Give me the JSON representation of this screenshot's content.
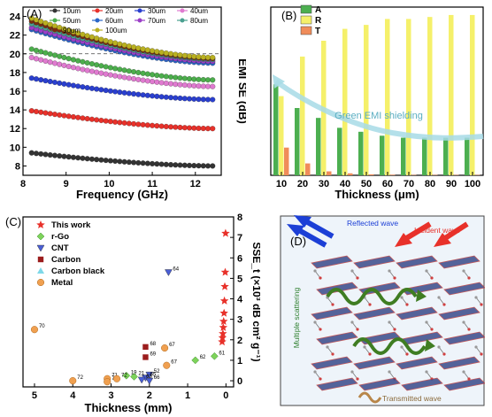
{
  "panelA": {
    "letter": "(A)",
    "chart_data": {
      "type": "line",
      "xlabel": "Frequency (GHz)",
      "ylabel": "EMI SE (dB)",
      "xlim": [
        8,
        12.6
      ],
      "ylim": [
        7,
        25
      ],
      "xticks": [
        "8",
        "9",
        "10",
        "11",
        "12"
      ],
      "yticks": [
        "8",
        "10",
        "12",
        "14",
        "16",
        "18",
        "20",
        "22",
        "24"
      ],
      "reference_line": 20,
      "x_start": 8.2,
      "x_end": 12.4,
      "series": [
        {
          "name": "10um",
          "color": "#333333",
          "y_start": 9.4,
          "y_end": 8.0
        },
        {
          "name": "20um",
          "color": "#e8312a",
          "y_start": 13.9,
          "y_end": 12.0
        },
        {
          "name": "30um",
          "color": "#2a3fcf",
          "y_start": 17.4,
          "y_end": 15.1
        },
        {
          "name": "40um",
          "color": "#e07ad0",
          "y_start": 19.6,
          "y_end": 16.5
        },
        {
          "name": "50um",
          "color": "#4cae4c",
          "y_start": 20.5,
          "y_end": 17.2
        },
        {
          "name": "60um",
          "color": "#2a66c8",
          "y_start": 22.6,
          "y_end": 19.0
        },
        {
          "name": "70um",
          "color": "#9b3fc8",
          "y_start": 22.8,
          "y_end": 19.2
        },
        {
          "name": "80um",
          "color": "#4aa090",
          "y_start": 23.2,
          "y_end": 19.4
        },
        {
          "name": "90um",
          "color": "#7a2c10",
          "y_start": 23.5,
          "y_end": 19.5
        },
        {
          "name": "100um",
          "color": "#b9b020",
          "y_start": 23.8,
          "y_end": 19.6
        }
      ]
    }
  },
  "panelB": {
    "letter": "(B)",
    "annotation": "Green EMI shielding",
    "chart_data": {
      "type": "bar",
      "xlabel": "Thickness (μm)",
      "categories": [
        "10",
        "20",
        "30",
        "40",
        "50",
        "60",
        "70",
        "80",
        "90",
        "100"
      ],
      "ylim": [
        0,
        0.85
      ],
      "series": [
        {
          "name": "A",
          "color": "#4caf50",
          "values": [
            0.46,
            0.34,
            0.29,
            0.24,
            0.22,
            0.2,
            0.19,
            0.19,
            0.19,
            0.19
          ]
        },
        {
          "name": "R",
          "color": "#f5f06a",
          "values": [
            0.4,
            0.6,
            0.68,
            0.74,
            0.76,
            0.79,
            0.79,
            0.8,
            0.81,
            0.81
          ]
        },
        {
          "name": "T",
          "color": "#f08c5a",
          "values": [
            0.14,
            0.06,
            0.02,
            0.01,
            0.005,
            0.003,
            0.002,
            0.002,
            0.002,
            0.002
          ]
        }
      ]
    }
  },
  "panelC": {
    "letter": "(C)",
    "chart_data": {
      "type": "scatter",
      "xlabel": "Thickness (mm)",
      "ylabel": "SSE_t (×10³ dB cm² g⁻¹)",
      "xlim": [
        5.3,
        -0.2
      ],
      "ylim": [
        -0.3,
        8.0
      ],
      "xticks": [
        "5",
        "4",
        "3",
        "2",
        "1",
        "0"
      ],
      "yticks": [
        "0",
        "1",
        "2",
        "3",
        "4",
        "5",
        "6",
        "7",
        "8"
      ],
      "legend": [
        "This work",
        "r-Go",
        "CNT",
        "Carbon",
        "Carbon black",
        "Metal"
      ],
      "points": [
        {
          "group": "This work",
          "x": 0.01,
          "y": 7.2
        },
        {
          "group": "This work",
          "x": 0.02,
          "y": 5.3
        },
        {
          "group": "This work",
          "x": 0.03,
          "y": 4.6
        },
        {
          "group": "This work",
          "x": 0.04,
          "y": 3.9
        },
        {
          "group": "This work",
          "x": 0.05,
          "y": 3.3
        },
        {
          "group": "This work",
          "x": 0.06,
          "y": 2.9
        },
        {
          "group": "This work",
          "x": 0.07,
          "y": 2.6
        },
        {
          "group": "This work",
          "x": 0.08,
          "y": 2.3
        },
        {
          "group": "This work",
          "x": 0.09,
          "y": 2.1
        },
        {
          "group": "This work",
          "x": 0.1,
          "y": 1.9
        },
        {
          "group": "r-Go",
          "x": 0.3,
          "y": 1.2,
          "label": "61"
        },
        {
          "group": "r-Go",
          "x": 0.8,
          "y": 1.0,
          "label": "62"
        },
        {
          "group": "r-Go",
          "x": 2.4,
          "y": 0.2,
          "label": "21"
        },
        {
          "group": "r-Go",
          "x": 2.6,
          "y": 0.25,
          "label": "19"
        },
        {
          "group": "CNT",
          "x": 1.5,
          "y": 5.3,
          "label": "64"
        },
        {
          "group": "CNT",
          "x": 2.0,
          "y": 0.3,
          "label": "52"
        },
        {
          "group": "CNT",
          "x": 2.1,
          "y": 0.15,
          "label": "65"
        },
        {
          "group": "CNT",
          "x": 2.2,
          "y": 0.05,
          "label": "63"
        },
        {
          "group": "CNT",
          "x": 2.0,
          "y": 0.0,
          "label": "66"
        },
        {
          "group": "Carbon",
          "x": 2.1,
          "y": 1.65,
          "label": "68"
        },
        {
          "group": "Carbon",
          "x": 2.1,
          "y": 1.15,
          "label": "69"
        },
        {
          "group": "Metal",
          "x": 5.0,
          "y": 2.5,
          "label": "70"
        },
        {
          "group": "Metal",
          "x": 4.0,
          "y": 0.0,
          "label": "72"
        },
        {
          "group": "Metal",
          "x": 3.1,
          "y": 0.1,
          "label": "71"
        },
        {
          "group": "Metal",
          "x": 3.1,
          "y": -0.05,
          "label": "72"
        },
        {
          "group": "Metal",
          "x": 2.85,
          "y": 0.1,
          "label": "72"
        },
        {
          "group": "Metal",
          "x": 1.6,
          "y": 1.6,
          "label": "67"
        },
        {
          "group": "Metal",
          "x": 1.55,
          "y": 0.75,
          "label": "67"
        }
      ]
    }
  },
  "panelD": {
    "letter": "(D)",
    "reflected": "Reflected wave",
    "incident": "Incident wave",
    "scattering": "Multiple scattering",
    "transmitted": "Transmitted wave"
  }
}
